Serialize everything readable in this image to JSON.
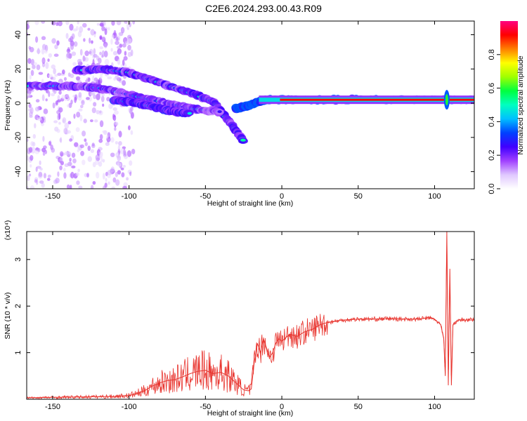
{
  "title": "C2E6.2024.293.00.43.R09",
  "chart_data": [
    {
      "type": "heatmap",
      "name": "spectrogram",
      "xlabel": "Height of straight line (km)",
      "ylabel": "Frequency (Hz)",
      "xlim": [
        -167,
        126
      ],
      "ylim": [
        -50,
        48
      ],
      "xticks": [
        -150,
        -100,
        -50,
        0,
        50,
        100
      ],
      "yticks": [
        -40,
        -20,
        0,
        20,
        40
      ],
      "colorbar": {
        "label": "Normalized spectral amplitude",
        "range": [
          0,
          1
        ],
        "ticks": [
          "0.0",
          "0.2",
          "0.4",
          "0.6",
          "0.8"
        ],
        "colormap": [
          "#ffffff",
          "#e0c8ff",
          "#a040ff",
          "#4000ff",
          "#0040ff",
          "#00c0ff",
          "#00ffc0",
          "#00ff40",
          "#a0ff00",
          "#ffff00",
          "#ff8000",
          "#ff0000",
          "#ff0080"
        ]
      },
      "features": [
        {
          "x": [
            -135,
            -120,
            -100,
            -80,
            -60,
            -45,
            -35,
            -25
          ],
          "y": [
            19,
            20,
            18,
            12,
            6,
            1,
            -10,
            -22
          ],
          "amplitude": 0.45
        },
        {
          "x": [
            -165,
            -140,
            -120,
            -100,
            -80,
            -60,
            -40
          ],
          "y": [
            10,
            10,
            9,
            5,
            1,
            -3,
            -5
          ],
          "amplitude": 0.4
        },
        {
          "x": [
            -110,
            -95,
            -80,
            -70,
            -60
          ],
          "y": [
            2,
            0,
            -3,
            -5,
            -6
          ],
          "amplitude": 0.5
        },
        {
          "x": [
            -30,
            -25,
            -20,
            -15,
            -10,
            0,
            10,
            50,
            100,
            126
          ],
          "y": [
            -3,
            -2,
            -1,
            1,
            2,
            2,
            2,
            2,
            2,
            2
          ],
          "amplitude": 0.9
        }
      ]
    },
    {
      "type": "line",
      "name": "snr",
      "xlabel": "Height of straight line (km)",
      "ylabel": "SNR (10 * v/v)",
      "multiplier": "(x10⁴)",
      "xlim": [
        -167,
        126
      ],
      "ylim": [
        0,
        3.6
      ],
      "xticks": [
        -150,
        -100,
        -50,
        0,
        50,
        100
      ],
      "yticks": [
        1,
        2,
        3
      ],
      "color": "#e8332d",
      "x": [
        -167,
        -150,
        -130,
        -110,
        -100,
        -95,
        -90,
        -85,
        -80,
        -75,
        -70,
        -65,
        -60,
        -55,
        -50,
        -45,
        -40,
        -35,
        -30,
        -25,
        -22,
        -20,
        -18,
        -16,
        -14,
        -12,
        -10,
        -8,
        -6,
        -4,
        -2,
        0,
        2,
        5,
        10,
        15,
        20,
        25,
        30,
        40,
        50,
        60,
        70,
        80,
        90,
        95,
        100,
        104,
        106,
        107,
        108,
        109,
        110,
        111,
        112,
        115,
        126
      ],
      "y": [
        0.03,
        0.04,
        0.05,
        0.06,
        0.08,
        0.12,
        0.18,
        0.28,
        0.35,
        0.4,
        0.42,
        0.48,
        0.55,
        0.6,
        0.62,
        0.55,
        0.58,
        0.5,
        0.35,
        0.2,
        0.18,
        0.22,
        0.8,
        1.2,
        1.0,
        1.3,
        1.1,
        0.9,
        1.0,
        1.2,
        1.3,
        1.25,
        1.3,
        1.4,
        1.35,
        1.45,
        1.5,
        1.6,
        1.65,
        1.7,
        1.72,
        1.72,
        1.73,
        1.72,
        1.72,
        1.75,
        1.72,
        1.6,
        1.3,
        0.5,
        3.6,
        0.3,
        2.8,
        0.3,
        1.6,
        1.7,
        1.7
      ]
    }
  ]
}
